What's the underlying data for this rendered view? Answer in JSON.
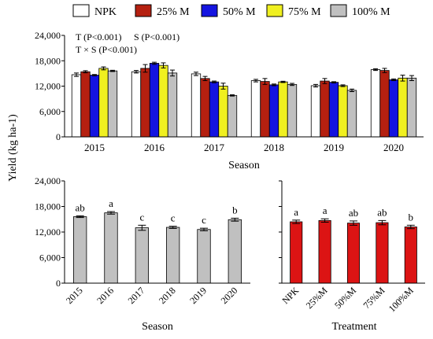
{
  "chart_data": [
    {
      "id": "top",
      "type": "bar",
      "legend": {
        "placement": "top",
        "entries": [
          {
            "label": "NPK",
            "color": "#ffffff"
          },
          {
            "label": "25% M",
            "color": "#b52010"
          },
          {
            "label": "50% M",
            "color": "#1414e0"
          },
          {
            "label": "75% M",
            "color": "#f0f020"
          },
          {
            "label": "100% M",
            "color": "#c0c0c0"
          }
        ]
      },
      "annotations": [
        "T (P<0.001)",
        "S (P<0.001)",
        "T × S (P<0.001)"
      ],
      "categories": [
        "2015",
        "2016",
        "2017",
        "2018",
        "2019",
        "2020"
      ],
      "series": [
        {
          "name": "NPK",
          "values": [
            14700,
            15400,
            14900,
            13300,
            12100,
            15900
          ],
          "errors": [
            400,
            300,
            400,
            300,
            300,
            200
          ]
        },
        {
          "name": "25% M",
          "values": [
            15400,
            16200,
            13800,
            13100,
            13200,
            15700
          ],
          "errors": [
            250,
            900,
            500,
            700,
            600,
            500
          ]
        },
        {
          "name": "50% M",
          "values": [
            14600,
            17400,
            13000,
            12300,
            12900,
            13500
          ],
          "errors": [
            150,
            250,
            200,
            200,
            150,
            200
          ]
        },
        {
          "name": "75% M",
          "values": [
            16200,
            16900,
            12000,
            13000,
            12100,
            13900
          ],
          "errors": [
            350,
            600,
            700,
            150,
            200,
            700
          ]
        },
        {
          "name": "100% M",
          "values": [
            15600,
            15100,
            9800,
            12400,
            11000,
            13900
          ],
          "errors": [
            150,
            700,
            150,
            250,
            300,
            600
          ]
        }
      ],
      "xlabel": "Season",
      "ylabel": "Yield (kg ha-1)",
      "ylim": [
        0,
        24000
      ],
      "yticks": [
        "0",
        "6,000",
        "12,000",
        "18,000",
        "24,000"
      ]
    },
    {
      "id": "bottom-left",
      "type": "bar",
      "categories": [
        "2015",
        "2016",
        "2017",
        "2018",
        "2019",
        "2020"
      ],
      "values": [
        15600,
        16500,
        13000,
        13100,
        12600,
        14900
      ],
      "errors": [
        200,
        300,
        600,
        250,
        300,
        350
      ],
      "letters": [
        "ab",
        "a",
        "c",
        "c",
        "c",
        "b"
      ],
      "color": "#c0c0c0",
      "xlabel": "Season",
      "ylim": [
        0,
        24000
      ],
      "yticks": [
        "0",
        "6,000",
        "12,000",
        "18,000",
        "24,000"
      ]
    },
    {
      "id": "bottom-right",
      "type": "bar",
      "categories": [
        "NPK",
        "25%M",
        "50%M",
        "75%M",
        "100%M"
      ],
      "values": [
        14400,
        14700,
        14100,
        14200,
        13200
      ],
      "errors": [
        400,
        400,
        500,
        500,
        400
      ],
      "letters": [
        "a",
        "a",
        "ab",
        "ab",
        "b"
      ],
      "color": "#dc1414",
      "xlabel": "Treatment",
      "ylim": [
        0,
        24000
      ]
    }
  ]
}
